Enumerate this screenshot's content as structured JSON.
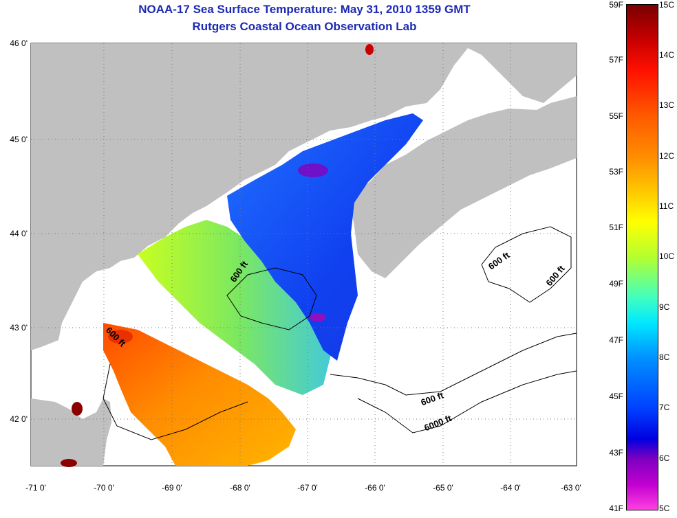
{
  "title": "NOAA-17 Sea Surface Temperature:  May 31, 2010 1359 GMT",
  "subtitle": "Rutgers Coastal Ocean Observation Lab",
  "lat_labels": [
    "46 0'",
    "45 0'",
    "44 0'",
    "43 0'",
    "42 0'"
  ],
  "lon_labels": [
    "-71 0'",
    "-70 0'",
    "-69 0'",
    "-68 0'",
    "-67 0'",
    "-66 0'",
    "-65 0'",
    "-64 0'",
    "-63 0'"
  ],
  "colorbar": {
    "fahrenheit": [
      "59F",
      "57F",
      "55F",
      "53F",
      "51F",
      "49F",
      "47F",
      "45F",
      "43F",
      "41F"
    ],
    "celsius": [
      "15C",
      "14C",
      "13C",
      "12C",
      "11C",
      "10C",
      "9C",
      "8C",
      "7C",
      "6C",
      "5C"
    ]
  },
  "contour_labels": [
    "600 ft",
    "600 ft",
    "600 ft",
    "600 ft",
    "600 ft",
    "6000 ft"
  ],
  "colors": {
    "land": "#c0c0c0",
    "title": "#1e2ab4",
    "ocean_nodata": "#ffffff"
  }
}
